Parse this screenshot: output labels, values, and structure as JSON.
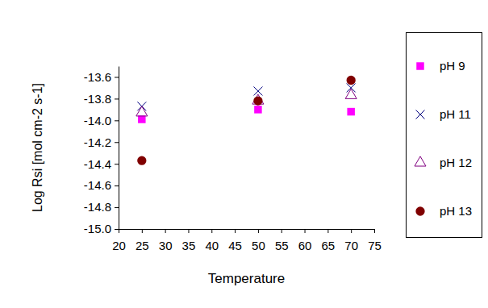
{
  "chart_data": {
    "type": "scatter",
    "x_label": "Temperature",
    "y_label": "Log Rsi [mol cm-2 s-1]",
    "x": [
      25,
      50,
      70
    ],
    "series": [
      {
        "name": "pH 9",
        "color": "#ff00ff",
        "marker": "square",
        "values": [
          -13.99,
          -13.9,
          -13.92
        ]
      },
      {
        "name": "pH 11",
        "color": "#000080",
        "marker": "x",
        "values": [
          -13.87,
          -13.73,
          -13.7
        ]
      },
      {
        "name": "pH 12",
        "color": "#800080",
        "marker": "triangle-open",
        "values": [
          -13.93,
          -13.82,
          -13.77
        ]
      },
      {
        "name": "pH 13",
        "color": "#800000",
        "marker": "circle",
        "values": [
          -14.37,
          -13.82,
          -13.63
        ]
      }
    ],
    "xlim": [
      20,
      75
    ],
    "xticks": [
      20,
      25,
      30,
      35,
      40,
      45,
      50,
      55,
      60,
      65,
      70,
      75
    ],
    "ylim": [
      -15,
      -13.5
    ],
    "yticks": [
      {
        "value": -15,
        "label": "-15.0"
      },
      {
        "value": -14.8,
        "label": "-14.8"
      },
      {
        "value": -14.6,
        "label": "-14.6"
      },
      {
        "value": -14.4,
        "label": "-14.4"
      },
      {
        "value": -14.2,
        "label": "-14.2"
      },
      {
        "value": -14,
        "label": "-14.0"
      },
      {
        "value": -13.8,
        "label": "-13.8"
      },
      {
        "value": -13.6,
        "label": "-13.6"
      }
    ],
    "grid": false,
    "legend": "right"
  }
}
